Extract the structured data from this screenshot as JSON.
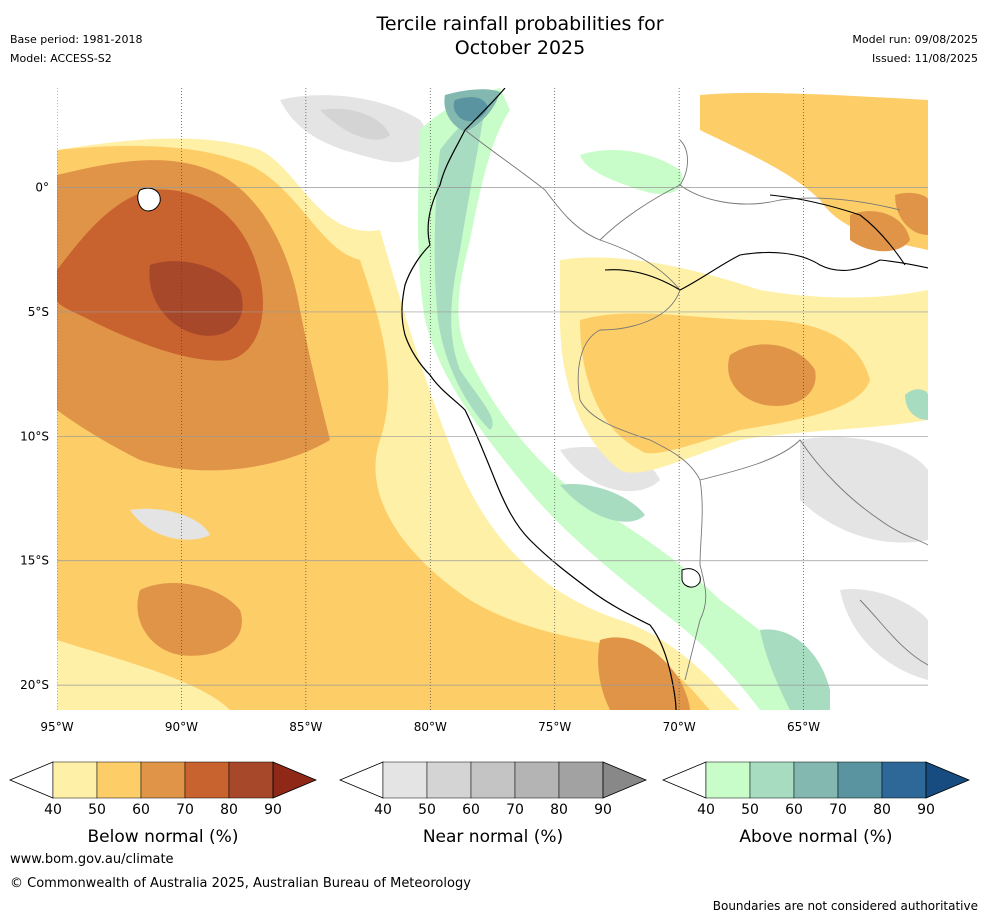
{
  "header": {
    "title_line1": "Tercile rainfall probabilities for",
    "title_line2": "October 2025",
    "base_period": "Base period: 1981-2018",
    "model": "Model: ACCESS-S2",
    "model_run": "Model run: 09/08/2025",
    "issued": "Issued: 11/08/2025"
  },
  "map": {
    "lon_ticks": [
      {
        "label": "95°W",
        "value": -95
      },
      {
        "label": "90°W",
        "value": -90
      },
      {
        "label": "85°W",
        "value": -85
      },
      {
        "label": "80°W",
        "value": -80
      },
      {
        "label": "75°W",
        "value": -75
      },
      {
        "label": "70°W",
        "value": -70
      },
      {
        "label": "65°W",
        "value": -65
      }
    ],
    "lat_ticks": [
      {
        "label": "0°",
        "value": 0
      },
      {
        "label": "5°S",
        "value": -5
      },
      {
        "label": "10°S",
        "value": -10
      },
      {
        "label": "15°S",
        "value": -15
      },
      {
        "label": "20°S",
        "value": -20
      }
    ],
    "extent": {
      "lon_min": -95,
      "lon_max": -60,
      "lat_min": -21,
      "lat_max": 4
    }
  },
  "colorbars": [
    {
      "title": "Below normal (%)",
      "ticks": [
        "40",
        "50",
        "60",
        "70",
        "80",
        "90"
      ],
      "colors": [
        "#fff0a8",
        "#fdce68",
        "#e09448",
        "#c8622e",
        "#a8482a",
        "#902818"
      ]
    },
    {
      "title": "Near normal (%)",
      "ticks": [
        "40",
        "50",
        "60",
        "70",
        "80",
        "90"
      ],
      "colors": [
        "#e4e4e4",
        "#d4d4d4",
        "#c4c4c4",
        "#b4b4b4",
        "#a2a2a2",
        "#888888"
      ]
    },
    {
      "title": "Above normal (%)",
      "ticks": [
        "40",
        "50",
        "60",
        "70",
        "80",
        "90"
      ],
      "colors": [
        "#c8fcc8",
        "#a8dcc0",
        "#82b8b0",
        "#5a94a0",
        "#2e6898",
        "#164c80"
      ]
    }
  ],
  "footer": {
    "website": "www.bom.gov.au/climate",
    "copyright": "© Commonwealth of Australia 2025, Australian Bureau of Meteorology",
    "disclaimer": "Boundaries are not considered authoritative"
  }
}
